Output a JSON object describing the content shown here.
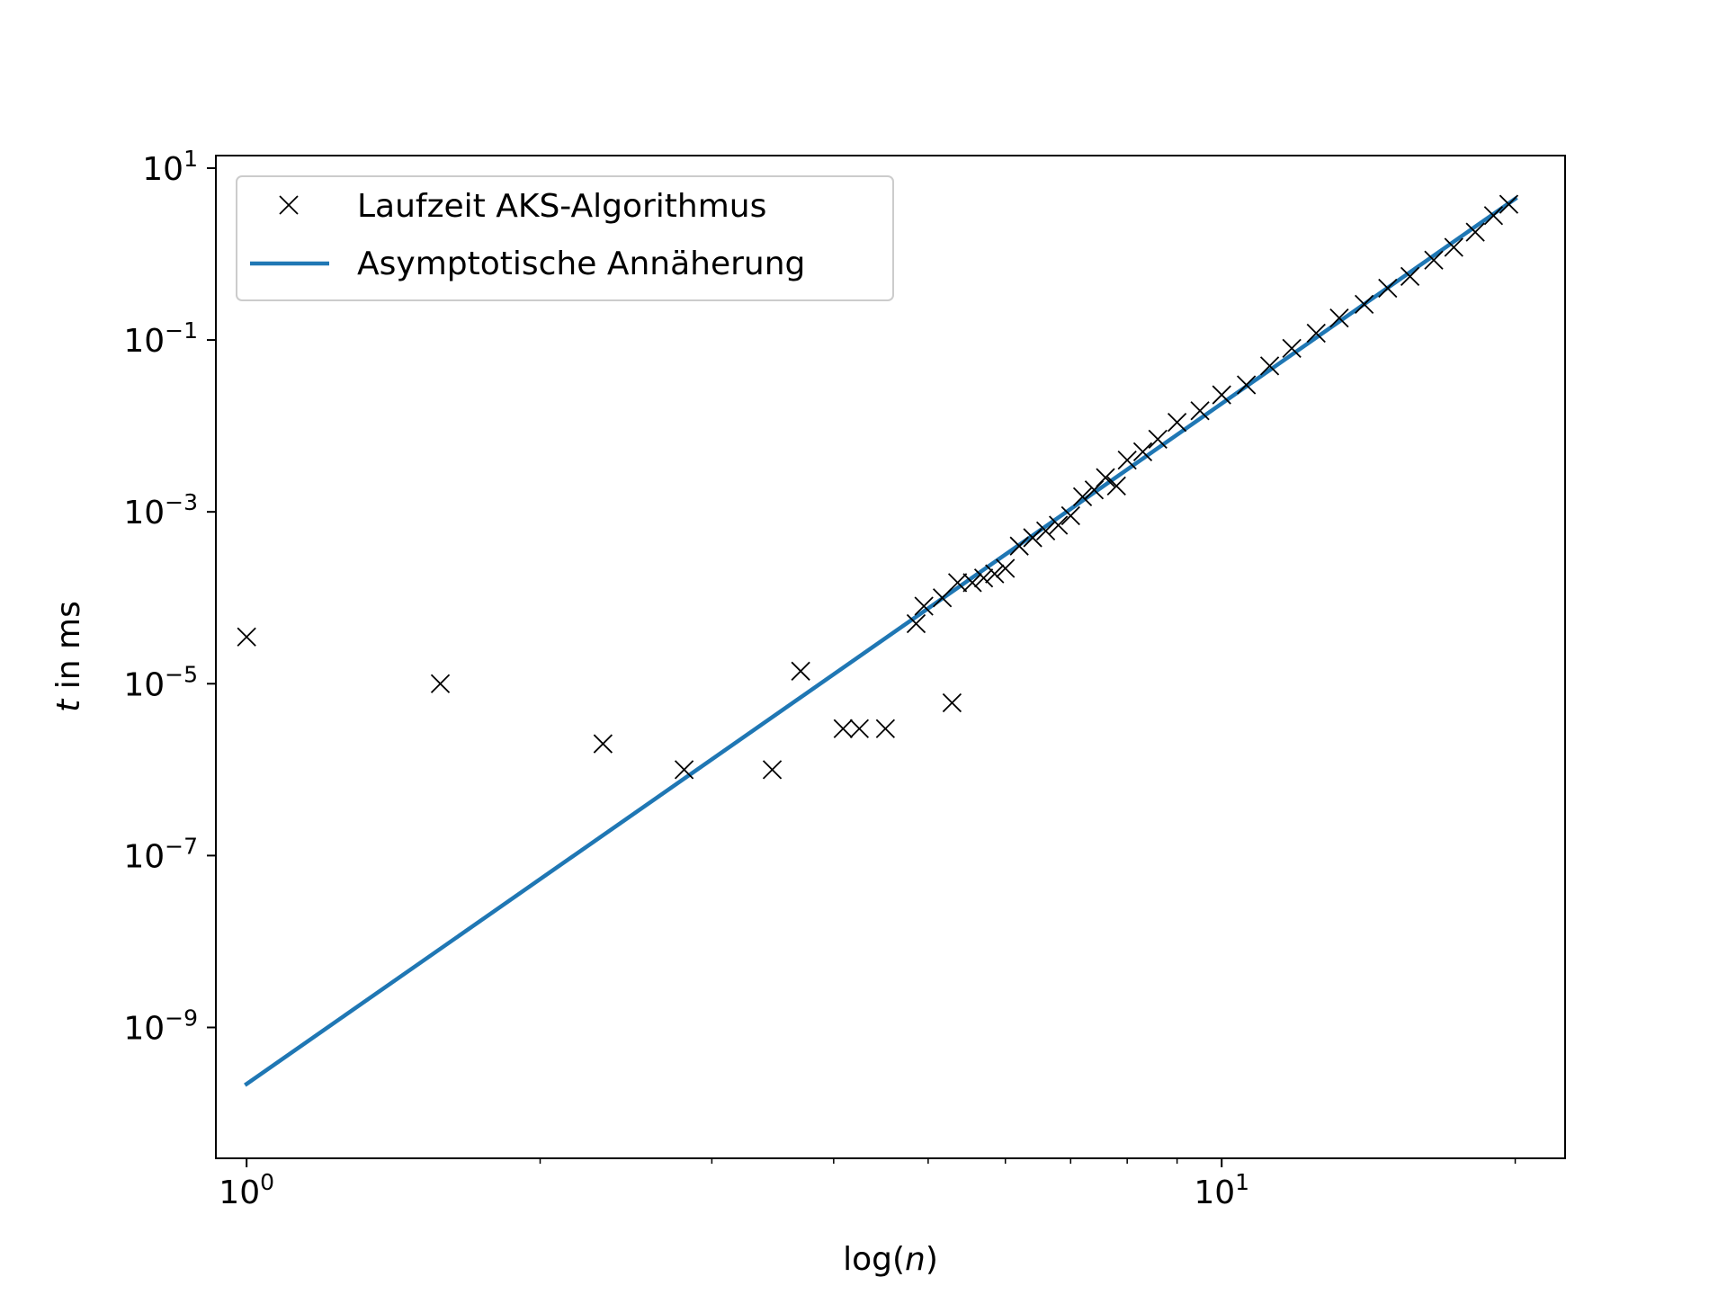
{
  "chart_data": {
    "type": "scatter",
    "xlabel_main": "log(",
    "xlabel_var": "n",
    "xlabel_close": ")",
    "ylabel_var": "t",
    "ylabel_rest": " in ms",
    "x_scale": "log",
    "y_scale": "log",
    "xlim": [
      0.93,
      22.5
    ],
    "ylim": [
      3e-11,
      14
    ],
    "grid": false,
    "legend_position": "top-left",
    "x_ticks": [
      {
        "value": 1,
        "base": "10",
        "exp": "0"
      },
      {
        "value": 10,
        "base": "10",
        "exp": "1"
      }
    ],
    "x_minor_ticks": [
      2,
      3,
      4,
      5,
      6,
      7,
      8,
      9,
      20
    ],
    "y_ticks": [
      {
        "value": 10,
        "base": "10",
        "exp": "1"
      },
      {
        "value": 0.1,
        "base": "10",
        "exp": "−1"
      },
      {
        "value": 0.001,
        "base": "10",
        "exp": "−3"
      },
      {
        "value": 1e-05,
        "base": "10",
        "exp": "−5"
      },
      {
        "value": 1e-07,
        "base": "10",
        "exp": "−7"
      },
      {
        "value": 1e-09,
        "base": "10",
        "exp": "−9"
      }
    ],
    "series": [
      {
        "name": "Laufzeit AKS-Algorithmus",
        "kind": "markers",
        "marker": "x",
        "color": "#000000",
        "points": [
          [
            1.0,
            3.5e-05
          ],
          [
            1.58,
            1e-05
          ],
          [
            2.32,
            2e-06
          ],
          [
            2.81,
            1e-06
          ],
          [
            3.46,
            1e-06
          ],
          [
            3.7,
            1.4e-05
          ],
          [
            4.09,
            3e-06
          ],
          [
            4.25,
            3e-06
          ],
          [
            4.52,
            3e-06
          ],
          [
            4.86,
            5e-05
          ],
          [
            4.95,
            8e-05
          ],
          [
            5.29,
            6e-06
          ],
          [
            5.17,
            0.0001
          ],
          [
            5.36,
            0.00015
          ],
          [
            5.55,
            0.00015
          ],
          [
            5.7,
            0.00017
          ],
          [
            5.85,
            0.00019
          ],
          [
            6.0,
            0.00022
          ],
          [
            6.2,
            0.0004
          ],
          [
            6.4,
            0.0005
          ],
          [
            6.6,
            0.0006
          ],
          [
            6.8,
            0.0007
          ],
          [
            7.0,
            0.0009
          ],
          [
            7.2,
            0.0015
          ],
          [
            7.4,
            0.0018
          ],
          [
            7.6,
            0.0025
          ],
          [
            7.8,
            0.002
          ],
          [
            8.0,
            0.004
          ],
          [
            8.3,
            0.005
          ],
          [
            8.6,
            0.007
          ],
          [
            9.0,
            0.011
          ],
          [
            9.5,
            0.015
          ],
          [
            10.0,
            0.023
          ],
          [
            10.6,
            0.03
          ],
          [
            11.2,
            0.05
          ],
          [
            11.8,
            0.08
          ],
          [
            12.5,
            0.12
          ],
          [
            13.2,
            0.18
          ],
          [
            14.0,
            0.26
          ],
          [
            14.8,
            0.4
          ],
          [
            15.6,
            0.55
          ],
          [
            16.5,
            0.85
          ],
          [
            17.3,
            1.2
          ],
          [
            18.2,
            1.8
          ],
          [
            19.0,
            2.8
          ],
          [
            19.7,
            3.8
          ]
        ]
      },
      {
        "name": "Asymptotische Annäherung",
        "kind": "line",
        "color": "#1f77b4",
        "points": [
          [
            1.0,
            2.2e-10
          ],
          [
            20.0,
            4.4
          ]
        ]
      }
    ]
  }
}
